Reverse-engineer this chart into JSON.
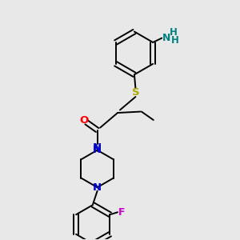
{
  "bg_color": "#e8e8e8",
  "bond_color": "#000000",
  "N_amino_color": "#008080",
  "H_color": "#008080",
  "N_pip_color": "#0000cc",
  "O_color": "#ff0000",
  "S_color": "#aaaa00",
  "F_color": "#cc00cc",
  "lw": 1.4,
  "fs": 8.5,
  "figsize": [
    3.0,
    3.0
  ],
  "dpi": 100,
  "xlim": [
    0,
    10
  ],
  "ylim": [
    0,
    10
  ]
}
